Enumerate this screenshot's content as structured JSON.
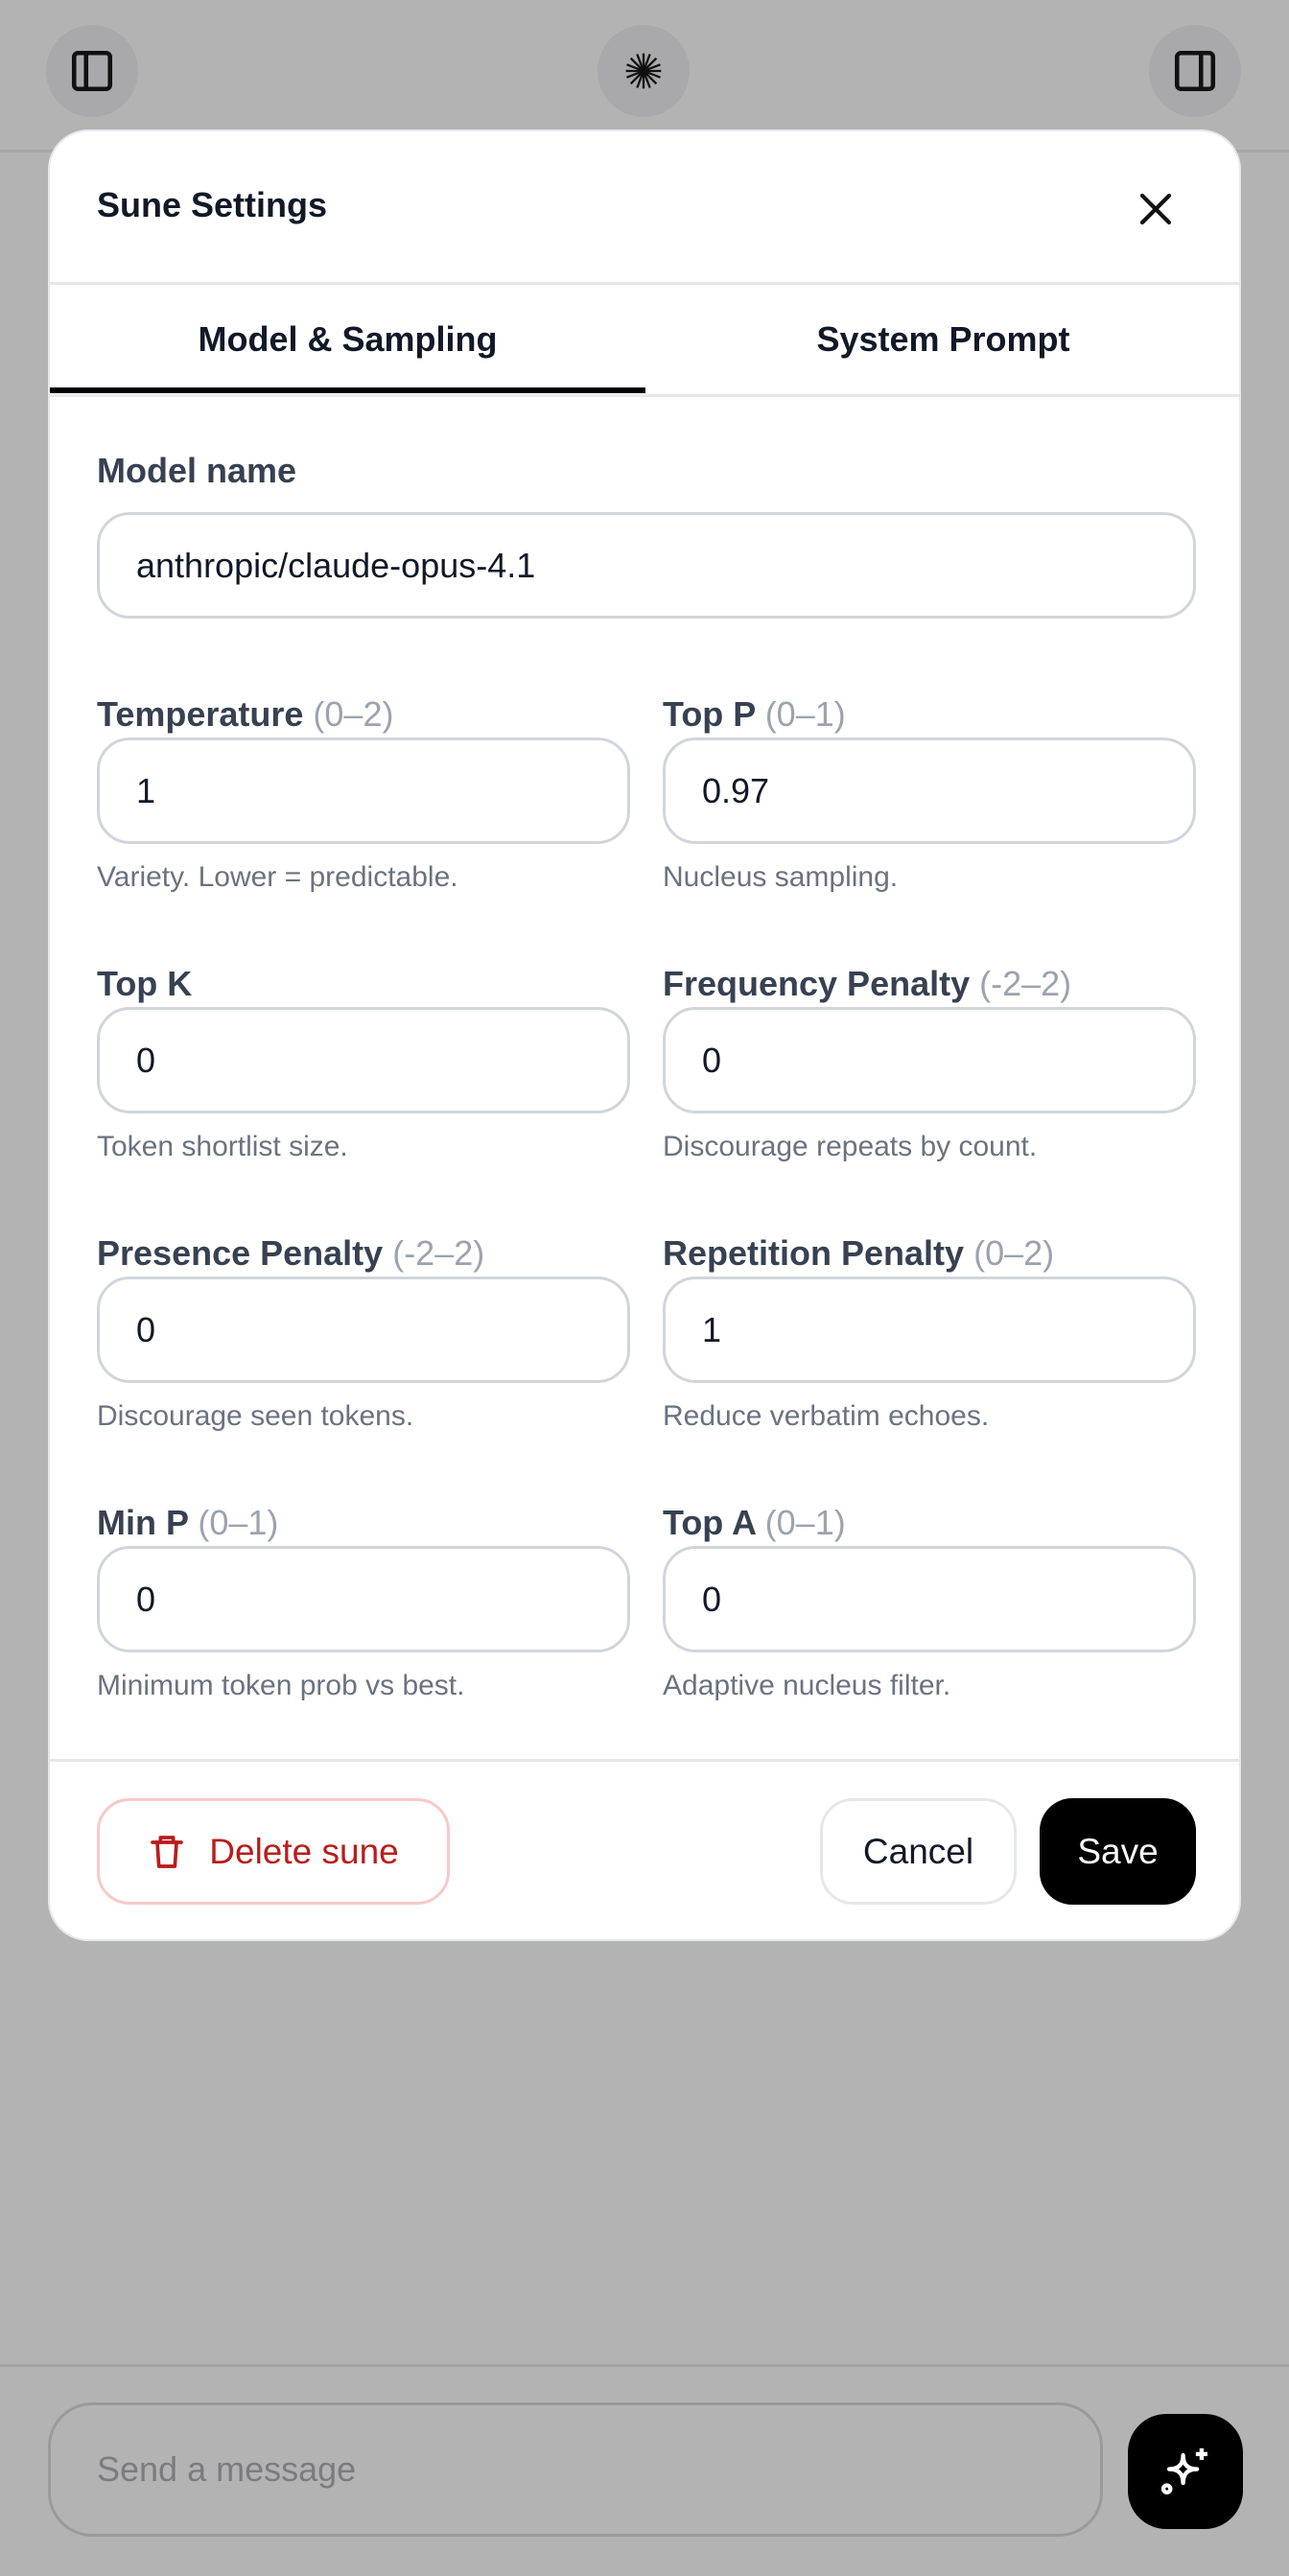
{
  "modal": {
    "title": "Sune Settings"
  },
  "tabs": [
    {
      "label": "Model & Sampling",
      "active": true
    },
    {
      "label": "System Prompt",
      "active": false
    }
  ],
  "model": {
    "label": "Model name",
    "value": "anthropic/claude-opus-4.1"
  },
  "fields": [
    {
      "label": "Temperature",
      "range": "(0–2)",
      "value": "1",
      "hint": "Variety. Lower = predictable."
    },
    {
      "label": "Top P",
      "range": "(0–1)",
      "value": "0.97",
      "hint": "Nucleus sampling."
    },
    {
      "label": "Top K",
      "range": "",
      "value": "0",
      "hint": "Token shortlist size."
    },
    {
      "label": "Frequency Penalty",
      "range": "(-2–2)",
      "value": "0",
      "hint": "Discourage repeats by count."
    },
    {
      "label": "Presence Penalty",
      "range": "(-2–2)",
      "value": "0",
      "hint": "Discourage seen tokens."
    },
    {
      "label": "Repetition Penalty",
      "range": "(0–2)",
      "value": "1",
      "hint": "Reduce verbatim echoes."
    },
    {
      "label": "Min P",
      "range": "(0–1)",
      "value": "0",
      "hint": "Minimum token prob vs best."
    },
    {
      "label": "Top A",
      "range": "(0–1)",
      "value": "0",
      "hint": "Adaptive nucleus filter."
    }
  ],
  "footer": {
    "delete_label": "Delete sune",
    "cancel_label": "Cancel",
    "save_label": "Save"
  },
  "composer": {
    "placeholder": "Send a message"
  },
  "icons": {
    "left": "sidebar-left-icon",
    "center": "starburst-icon",
    "right": "sidebar-right-icon",
    "send": "sparkles-icon",
    "delete": "trash-icon",
    "close": "close-icon"
  },
  "colors": {
    "danger": "#b91c1c",
    "primary": "#000000",
    "overlay": "#b3b3b3"
  }
}
